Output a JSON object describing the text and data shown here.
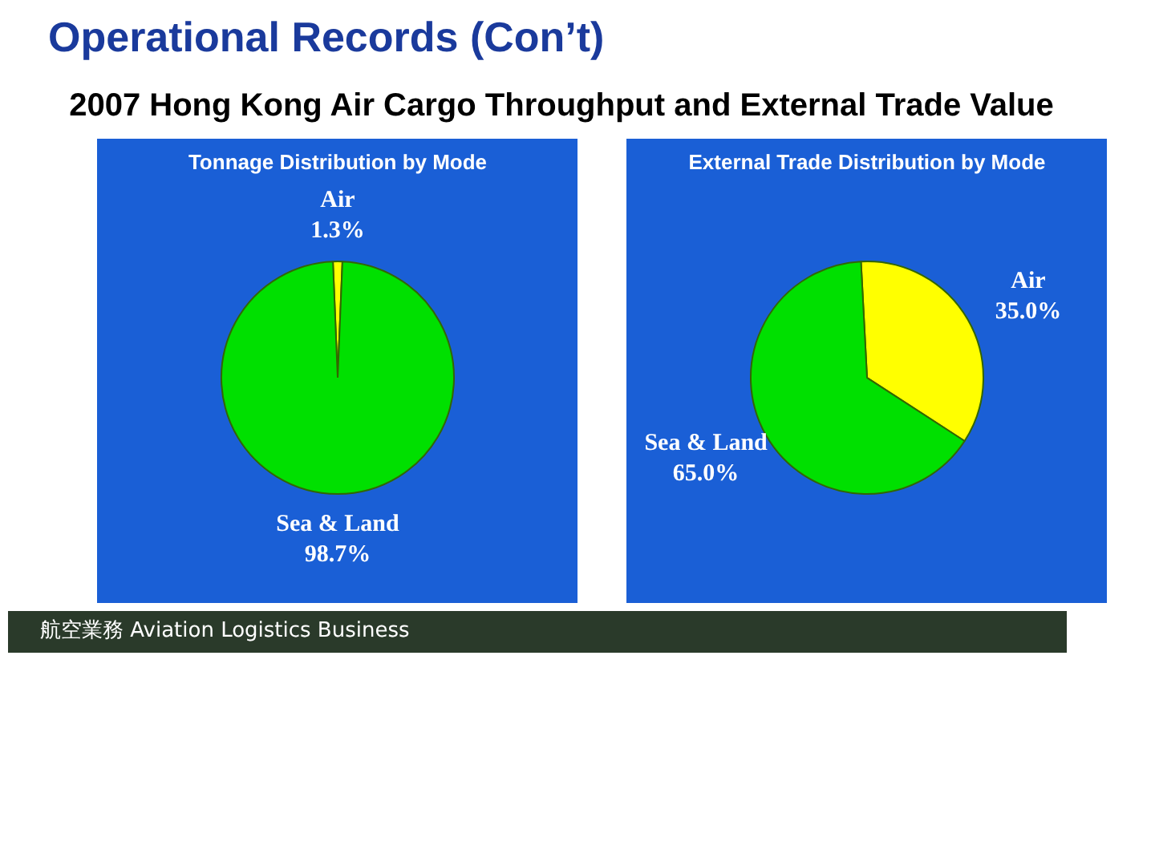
{
  "chart_data": [
    {
      "type": "pie",
      "title": "Tonnage Distribution by Mode",
      "categories": [
        "Air",
        "Sea & Land"
      ],
      "values": [
        1.3,
        98.7
      ],
      "colors": [
        "#ffff00",
        "#00e000"
      ],
      "value_labels": [
        "1.3%",
        "98.7%"
      ],
      "annotations": [
        "Operational Records (Con’t)",
        "2007 Hong Kong Air Cargo Throughput and External Trade Value",
        "航空業務 Aviation Logistics Business"
      ]
    },
    {
      "type": "pie",
      "title": "External Trade Distribution by Mode",
      "categories": [
        "Air",
        "Sea & Land"
      ],
      "values": [
        35.0,
        65.0
      ],
      "colors": [
        "#ffff00",
        "#00e000"
      ],
      "value_labels": [
        "35.0%",
        "65.0%"
      ]
    }
  ]
}
